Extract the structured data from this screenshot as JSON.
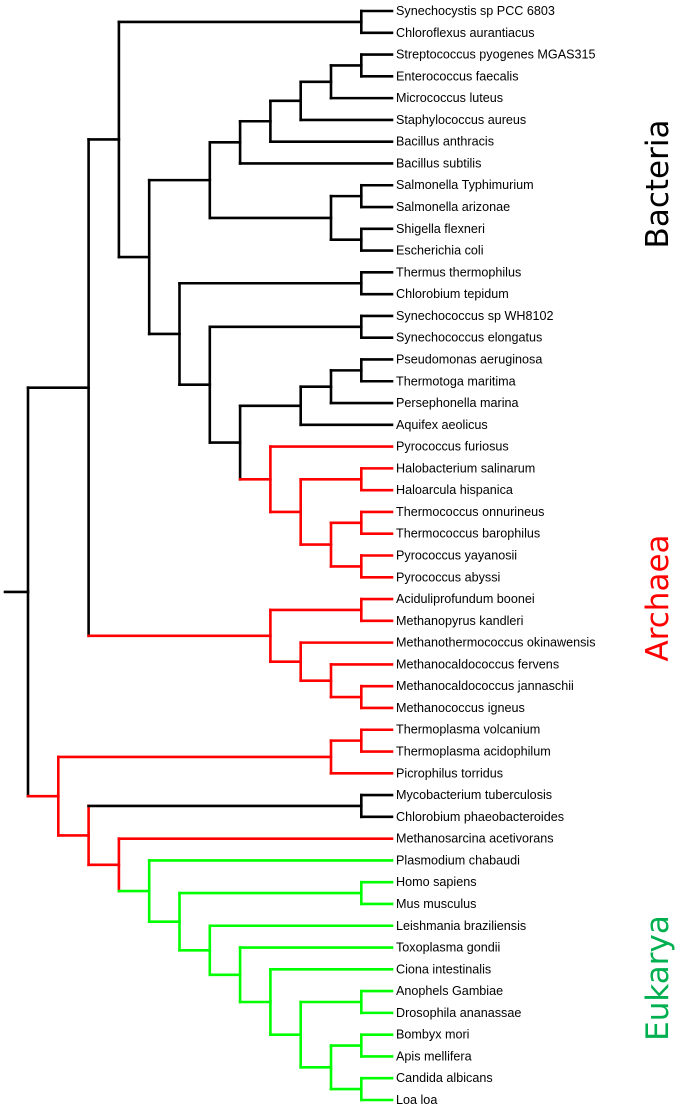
{
  "colors": {
    "k": "#000000",
    "r": "#ff0000",
    "g": "#00ff00"
  },
  "clades": [
    {
      "name": "Bacteria",
      "color": "#000000"
    },
    {
      "name": "Archaea",
      "color": "#ff0000"
    },
    {
      "name": "Eukarya",
      "color": "#00b050"
    }
  ],
  "leaves": [
    "Synechocystis sp PCC 6803",
    "Chloroflexus aurantiacus",
    "Streptococcus pyogenes MGAS315",
    "Enterococcus faecalis",
    "Micrococcus luteus",
    "Staphylococcus aureus",
    "Bacillus anthracis",
    "Bacillus subtilis",
    "Salmonella Typhimurium",
    "Salmonella arizonae",
    "Shigella flexneri",
    "Escherichia coli",
    "Thermus thermophilus",
    "Chlorobium tepidum",
    "Synechococcus sp WH8102",
    "Synechococcus elongatus",
    "Pseudomonas aeruginosa",
    "Thermotoga maritima",
    "Persephonella marina",
    "Aquifex aeolicus",
    "Pyrococcus furiosus",
    "Halobacterium salinarum",
    "Haloarcula hispanica",
    "Thermococcus onnurineus",
    "Thermococcus barophilus",
    "Pyrococcus yayanosii",
    "Pyrococcus abyssi",
    "Aciduliprofundum boonei",
    "Methanopyrus kandleri",
    "Methanothermococcus okinawensis",
    "Methanocaldococcus fervens",
    "Methanocaldococcus jannaschii",
    "Methanococcus igneus",
    "Thermoplasma volcanium",
    "Thermoplasma acidophilum",
    "Picrophilus torridus",
    "Mycobacterium tuberculosis",
    "Chlorobium phaeobacteroides",
    "Methanosarcina acetivorans",
    "Plasmodium chabaudi",
    "Homo sapiens",
    "Mus musculus",
    "Leishmania braziliensis",
    "Toxoplasma gondii",
    "Ciona intestinalis",
    "Anophels Gambiae",
    "Drosophila ananassae",
    "Bombyx mori",
    "Apis mellifera",
    "Candida albicans",
    "Loa loa"
  ],
  "tree": {
    "c": "k",
    "ch": [
      {
        "ch": [
          {
            "ch": [
              {
                "ch": [
                  0,
                  1
                ]
              },
              {
                "ch": [
                  {
                    "ch": [
                      {
                        "ch": [
                          {
                            "ch": [
                              {
                                "ch": [
                                  {
                                    "ch": [
                                      {
                                        "ch": [
                                          2,
                                          3
                                        ]
                                      },
                                      4
                                    ]
                                  },
                                  5
                                ]
                              },
                              6
                            ]
                          },
                          7
                        ]
                      },
                      {
                        "ch": [
                          {
                            "ch": [
                              8,
                              9
                            ]
                          },
                          {
                            "ch": [
                              10,
                              11
                            ]
                          }
                        ]
                      }
                    ]
                  },
                  {
                    "ch": [
                      {
                        "ch": [
                          12,
                          13
                        ]
                      },
                      {
                        "ch": [
                          {
                            "ch": [
                              14,
                              15
                            ]
                          },
                          {
                            "ch": [
                              {
                                "ch": [
                                  {
                                    "ch": [
                                      {
                                        "ch": [
                                          16,
                                          17
                                        ]
                                      },
                                      18
                                    ]
                                  },
                                  19
                                ]
                              },
                              {
                                "c": "r",
                                "ch": [
                                  20,
                                  {
                                    "ch": [
                                      {
                                        "ch": [
                                          21,
                                          22
                                        ]
                                      },
                                      {
                                        "ch": [
                                          {
                                            "ch": [
                                              23,
                                              24
                                            ]
                                          },
                                          {
                                            "ch": [
                                              25,
                                              26
                                            ]
                                          }
                                        ]
                                      }
                                    ]
                                  }
                                ]
                              }
                            ]
                          }
                        ]
                      }
                    ]
                  }
                ]
              }
            ]
          },
          {
            "c": "r",
            "ch": [
              {
                "ch": [
                  27,
                  28
                ]
              },
              {
                "ch": [
                  29,
                  {
                    "ch": [
                      30,
                      {
                        "ch": [
                          31,
                          32
                        ]
                      }
                    ]
                  }
                ]
              }
            ]
          }
        ]
      },
      {
        "c": "r",
        "ch": [
          {
            "ch": [
              {
                "ch": [
                  33,
                  34
                ]
              },
              35
            ]
          },
          {
            "ch": [
              {
                "c": "k",
                "ch": [
                  36,
                  37
                ]
              },
              {
                "ch": [
                  38,
                  {
                    "c": "g",
                    "ch": [
                      39,
                      {
                        "ch": [
                          {
                            "ch": [
                              40,
                              41
                            ]
                          },
                          {
                            "ch": [
                              42,
                              {
                                "ch": [
                                  43,
                                  {
                                    "ch": [
                                      44,
                                      {
                                        "ch": [
                                          {
                                            "ch": [
                                              45,
                                              46
                                            ]
                                          },
                                          {
                                            "ch": [
                                              {
                                                "ch": [
                                                  47,
                                                  48
                                                ]
                                              },
                                              {
                                                "ch": [
                                                  49,
                                                  50
                                                ]
                                              }
                                            ]
                                          }
                                        ]
                                      }
                                    ]
                                  }
                                ]
                              }
                            ]
                          }
                        ]
                      }
                    ]
                  }
                ]
              }
            ]
          }
        ]
      }
    ]
  }
}
